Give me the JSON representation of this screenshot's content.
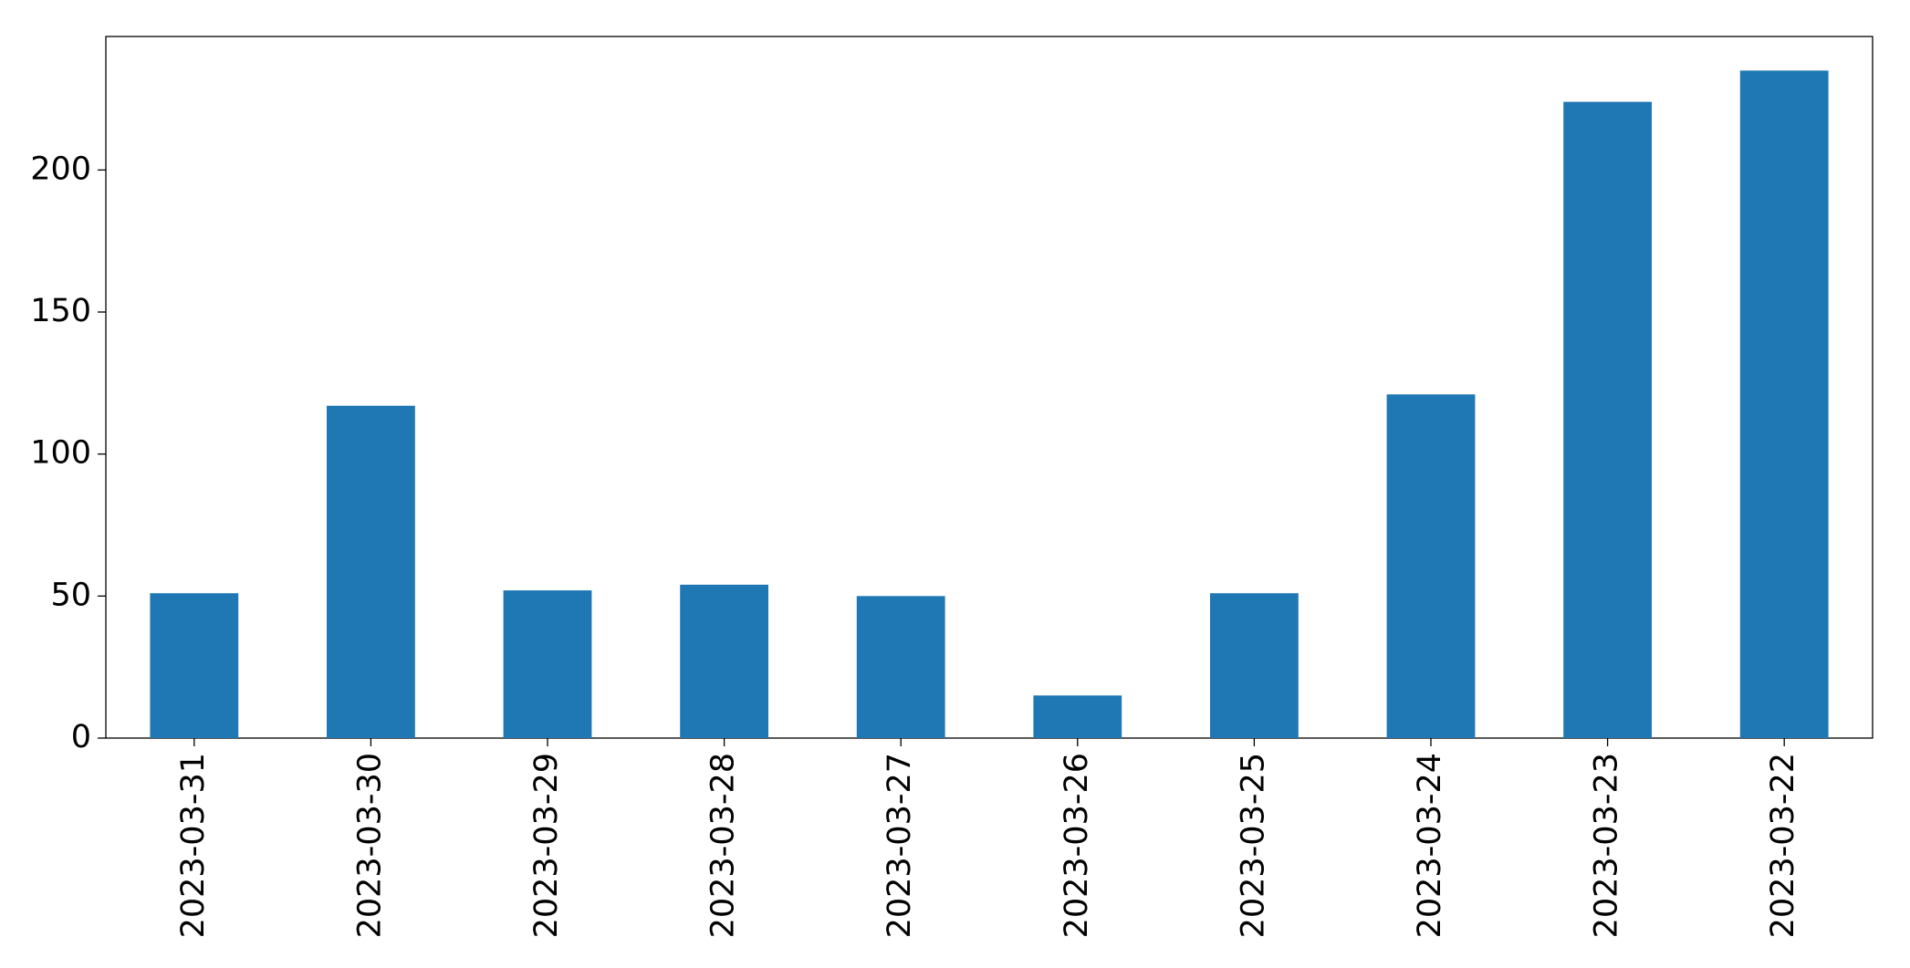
{
  "chart_data": {
    "type": "bar",
    "categories": [
      "2023-03-31",
      "2023-03-30",
      "2023-03-29",
      "2023-03-28",
      "2023-03-27",
      "2023-03-26",
      "2023-03-25",
      "2023-03-24",
      "2023-03-23",
      "2023-03-22"
    ],
    "values": [
      51,
      117,
      52,
      54,
      50,
      15,
      51,
      121,
      224,
      235
    ],
    "color": "#1f77b4",
    "ylim": [
      0,
      247
    ],
    "yticks": [
      0,
      50,
      100,
      150,
      200
    ],
    "grid": false
  }
}
